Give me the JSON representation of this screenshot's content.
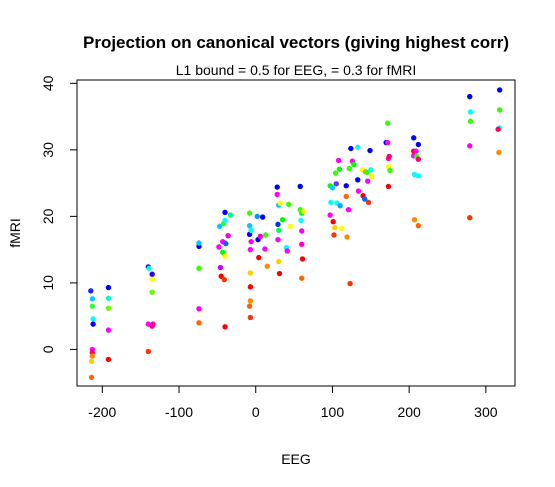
{
  "chart_data": {
    "type": "scatter",
    "title": "Projection on canonical vectors (giving highest corr)",
    "subtitle": "L1 bound = 0.5 for EEG, = 0.3 for fMRI",
    "xlabel": "EEG",
    "ylabel": "fMRI",
    "xlim": [
      -233,
      338
    ],
    "ylim": [
      -5.5,
      40.5
    ],
    "xticks": [
      -200,
      -100,
      0,
      100,
      200,
      300
    ],
    "xtick_labels": [
      "-200",
      "-100",
      "0",
      "100",
      "200",
      "300"
    ],
    "yticks": [
      0,
      10,
      20,
      30,
      40
    ],
    "ytick_labels": [
      "0",
      "10",
      "20",
      "30",
      "40"
    ],
    "grid": false,
    "legend": "none",
    "series_colors": [
      "#ff0000",
      "#ff8c00",
      "#ffff00",
      "#00ff00",
      "#00ffff",
      "#0000ff",
      "#ff00ff"
    ],
    "points": [
      {
        "x": -215,
        "y": 8.8,
        "c": "#2222ff"
      },
      {
        "x": -213,
        "y": 7.6,
        "c": "#00ccff"
      },
      {
        "x": -212,
        "y": 4.6,
        "c": "#00ffff"
      },
      {
        "x": -212,
        "y": 3.8,
        "c": "#0000ff"
      },
      {
        "x": -213,
        "y": 6.5,
        "c": "#33ff33"
      },
      {
        "x": -213,
        "y": 0.0,
        "c": "#ff00ff"
      },
      {
        "x": -213,
        "y": -0.5,
        "c": "#ff0066"
      },
      {
        "x": -213,
        "y": -1.0,
        "c": "#ff8c00"
      },
      {
        "x": -214,
        "y": -1.8,
        "c": "#ffcc00"
      },
      {
        "x": -214,
        "y": -4.2,
        "c": "#ff6600"
      },
      {
        "x": -192,
        "y": 9.3,
        "c": "#0000ff"
      },
      {
        "x": -192,
        "y": 7.7,
        "c": "#00ffcc"
      },
      {
        "x": -192,
        "y": 6.2,
        "c": "#66ff00"
      },
      {
        "x": -192,
        "y": 2.9,
        "c": "#ff00ff"
      },
      {
        "x": -192,
        "y": -1.5,
        "c": "#ff0000"
      },
      {
        "x": -140,
        "y": 12.4,
        "c": "#0000ff"
      },
      {
        "x": -139,
        "y": 12.2,
        "c": "#00ffcc"
      },
      {
        "x": -140,
        "y": 3.8,
        "c": "#ff00ff"
      },
      {
        "x": -140,
        "y": -0.3,
        "c": "#ff3300"
      },
      {
        "x": -135,
        "y": 11.3,
        "c": "#2200ff"
      },
      {
        "x": -135,
        "y": 10.5,
        "c": "#ffff00"
      },
      {
        "x": -135,
        "y": 8.6,
        "c": "#66ff00"
      },
      {
        "x": -135,
        "y": 3.5,
        "c": "#ff0066"
      },
      {
        "x": -134,
        "y": 3.8,
        "c": "#ff00aa"
      },
      {
        "x": -74,
        "y": 15.5,
        "c": "#0000ff"
      },
      {
        "x": -74,
        "y": 16.0,
        "c": "#00ccff"
      },
      {
        "x": -74,
        "y": 12.2,
        "c": "#33ff00"
      },
      {
        "x": -74,
        "y": 6.1,
        "c": "#ff00ff"
      },
      {
        "x": -74,
        "y": 4.0,
        "c": "#ff6600"
      },
      {
        "x": -48,
        "y": 15.4,
        "c": "#ff00ff"
      },
      {
        "x": -47,
        "y": 18.5,
        "c": "#00ccff"
      },
      {
        "x": -46,
        "y": 12.3,
        "c": "#cc00ff"
      },
      {
        "x": -45,
        "y": 11.0,
        "c": "#ff0000"
      },
      {
        "x": -43,
        "y": 14.6,
        "c": "#00ff00"
      },
      {
        "x": -43,
        "y": 16.2,
        "c": "#ff00ff"
      },
      {
        "x": -42,
        "y": 18.9,
        "c": "#33ff00"
      },
      {
        "x": -41,
        "y": 10.5,
        "c": "#ff3300"
      },
      {
        "x": -40,
        "y": 20.6,
        "c": "#0000ff"
      },
      {
        "x": -40,
        "y": 19.4,
        "c": "#00ffff"
      },
      {
        "x": -40,
        "y": 14.0,
        "c": "#ffff00"
      },
      {
        "x": -40,
        "y": 3.4,
        "c": "#ff0000"
      },
      {
        "x": -39,
        "y": 15.9,
        "c": "#0066ff"
      },
      {
        "x": -36,
        "y": 17.1,
        "c": "#ff00cc"
      },
      {
        "x": -33,
        "y": 20.2,
        "c": "#00ff66"
      },
      {
        "x": -8,
        "y": 20.5,
        "c": "#33ff00"
      },
      {
        "x": -8,
        "y": 18.6,
        "c": "#00ccff"
      },
      {
        "x": -8,
        "y": 17.3,
        "c": "#0000ff"
      },
      {
        "x": -7,
        "y": 15.0,
        "c": "#ff00ff"
      },
      {
        "x": -7,
        "y": 11.5,
        "c": "#ffcc00"
      },
      {
        "x": -7,
        "y": 9.4,
        "c": "#ff0000"
      },
      {
        "x": -7,
        "y": 7.3,
        "c": "#ff8c00"
      },
      {
        "x": -8,
        "y": 6.5,
        "c": "#ff6600"
      },
      {
        "x": -7,
        "y": 4.8,
        "c": "#ff3300"
      },
      {
        "x": -6,
        "y": 17.9,
        "c": "#00ffff"
      },
      {
        "x": -6,
        "y": 16.2,
        "c": "#ff00ff"
      },
      {
        "x": 2,
        "y": 20.0,
        "c": "#0099ff"
      },
      {
        "x": 3,
        "y": 16.5,
        "c": "#0000ff"
      },
      {
        "x": 4,
        "y": 13.8,
        "c": "#ff0000"
      },
      {
        "x": 6,
        "y": 17.0,
        "c": "#ff00cc"
      },
      {
        "x": 9,
        "y": 19.9,
        "c": "#0000ff"
      },
      {
        "x": 12,
        "y": 15.1,
        "c": "#ff00ff"
      },
      {
        "x": 13,
        "y": 17.2,
        "c": "#33ff00"
      },
      {
        "x": 15,
        "y": 12.5,
        "c": "#ff8c00"
      },
      {
        "x": 28,
        "y": 24.4,
        "c": "#0000ff"
      },
      {
        "x": 28,
        "y": 23.3,
        "c": "#ff00ff"
      },
      {
        "x": 29,
        "y": 18.8,
        "c": "#0033ff"
      },
      {
        "x": 29,
        "y": 16.5,
        "c": "#ff00ff"
      },
      {
        "x": 30,
        "y": 21.7,
        "c": "#00ccff"
      },
      {
        "x": 30,
        "y": 17.9,
        "c": "#00ff66"
      },
      {
        "x": 30,
        "y": 13.2,
        "c": "#ffcc00"
      },
      {
        "x": 31,
        "y": 11.4,
        "c": "#ff0000"
      },
      {
        "x": 32,
        "y": 22.0,
        "c": "#ffff00"
      },
      {
        "x": 35,
        "y": 19.5,
        "c": "#00ff00"
      },
      {
        "x": 40,
        "y": 15.3,
        "c": "#00ffff"
      },
      {
        "x": 41,
        "y": 14.8,
        "c": "#ff00ff"
      },
      {
        "x": 43,
        "y": 21.8,
        "c": "#33ff00"
      },
      {
        "x": 45,
        "y": 18.5,
        "c": "#ffff00"
      },
      {
        "x": 58,
        "y": 24.5,
        "c": "#0000ff"
      },
      {
        "x": 58,
        "y": 21.0,
        "c": "#33ff00"
      },
      {
        "x": 59,
        "y": 19.4,
        "c": "#00ffff"
      },
      {
        "x": 60,
        "y": 20.5,
        "c": "#00ff00"
      },
      {
        "x": 60,
        "y": 17.8,
        "c": "#ff00ff"
      },
      {
        "x": 60,
        "y": 15.8,
        "c": "#ff00cc"
      },
      {
        "x": 61,
        "y": 13.6,
        "c": "#ff0000"
      },
      {
        "x": 60,
        "y": 10.7,
        "c": "#ff6600"
      },
      {
        "x": 62,
        "y": 20.8,
        "c": "#ffff00"
      },
      {
        "x": 97,
        "y": 24.6,
        "c": "#00ff00"
      },
      {
        "x": 98,
        "y": 22.1,
        "c": "#00ffff"
      },
      {
        "x": 97,
        "y": 20.2,
        "c": "#ff00ff"
      },
      {
        "x": 100,
        "y": 24.3,
        "c": "#00ccff"
      },
      {
        "x": 101,
        "y": 19.2,
        "c": "#ff0000"
      },
      {
        "x": 102,
        "y": 17.2,
        "c": "#ff3300"
      },
      {
        "x": 103,
        "y": 18.3,
        "c": "#ffcc00"
      },
      {
        "x": 104,
        "y": 26.5,
        "c": "#33ff00"
      },
      {
        "x": 105,
        "y": 24.9,
        "c": "#6633ff"
      },
      {
        "x": 106,
        "y": 22.0,
        "c": "#00ffff"
      },
      {
        "x": 108,
        "y": 28.4,
        "c": "#ff00ff"
      },
      {
        "x": 109,
        "y": 27.1,
        "c": "#00ff00"
      },
      {
        "x": 110,
        "y": 21.6,
        "c": "#00aaff"
      },
      {
        "x": 112,
        "y": 18.2,
        "c": "#ffff00"
      },
      {
        "x": 118,
        "y": 24.6,
        "c": "#0000ff"
      },
      {
        "x": 118,
        "y": 23.0,
        "c": "#ff6600"
      },
      {
        "x": 119,
        "y": 16.9,
        "c": "#ff8c00"
      },
      {
        "x": 121,
        "y": 21.0,
        "c": "#ff00ff"
      },
      {
        "x": 122,
        "y": 27.2,
        "c": "#33ff00"
      },
      {
        "x": 123,
        "y": 9.9,
        "c": "#ff3300"
      },
      {
        "x": 124,
        "y": 30.2,
        "c": "#0000ff"
      },
      {
        "x": 126,
        "y": 28.3,
        "c": "#ff00ff"
      },
      {
        "x": 128,
        "y": 27.8,
        "c": "#00ff00"
      },
      {
        "x": 133,
        "y": 30.4,
        "c": "#00ffff"
      },
      {
        "x": 133,
        "y": 25.5,
        "c": "#0000ff"
      },
      {
        "x": 134,
        "y": 23.8,
        "c": "#ff00ff"
      },
      {
        "x": 139,
        "y": 27.0,
        "c": "#ffff00"
      },
      {
        "x": 140,
        "y": 23.1,
        "c": "#ff0000"
      },
      {
        "x": 142,
        "y": 22.6,
        "c": "#0066ff"
      },
      {
        "x": 143,
        "y": 26.7,
        "c": "#ff8c00"
      },
      {
        "x": 145,
        "y": 26.6,
        "c": "#33ff00"
      },
      {
        "x": 146,
        "y": 25.3,
        "c": "#ff00ff"
      },
      {
        "x": 147,
        "y": 22.1,
        "c": "#ff3300"
      },
      {
        "x": 149,
        "y": 29.9,
        "c": "#0000ff"
      },
      {
        "x": 150,
        "y": 27.0,
        "c": "#00ffff"
      },
      {
        "x": 151,
        "y": 26.0,
        "c": "#ffff00"
      },
      {
        "x": 170,
        "y": 31.1,
        "c": "#0000ff"
      },
      {
        "x": 172,
        "y": 34.0,
        "c": "#33ff00"
      },
      {
        "x": 172,
        "y": 31.1,
        "c": "#ff00ff"
      },
      {
        "x": 173,
        "y": 28.7,
        "c": "#ff00cc"
      },
      {
        "x": 173,
        "y": 27.5,
        "c": "#ffff00"
      },
      {
        "x": 173,
        "y": 24.5,
        "c": "#ff0000"
      },
      {
        "x": 174,
        "y": 29.0,
        "c": "#ff0066"
      },
      {
        "x": 175,
        "y": 26.9,
        "c": "#33ff00"
      },
      {
        "x": 206,
        "y": 31.8,
        "c": "#0000ff"
      },
      {
        "x": 206,
        "y": 29.8,
        "c": "#ff0000"
      },
      {
        "x": 206,
        "y": 29.1,
        "c": "#ff00ff"
      },
      {
        "x": 207,
        "y": 26.3,
        "c": "#00ffff"
      },
      {
        "x": 207,
        "y": 19.5,
        "c": "#ff8c00"
      },
      {
        "x": 209,
        "y": 29.8,
        "c": "#ff00ff"
      },
      {
        "x": 210,
        "y": 29.0,
        "c": "#33ff00"
      },
      {
        "x": 212,
        "y": 30.8,
        "c": "#0000ff"
      },
      {
        "x": 212,
        "y": 28.6,
        "c": "#ff0066"
      },
      {
        "x": 212,
        "y": 26.1,
        "c": "#00ffff"
      },
      {
        "x": 212,
        "y": 18.6,
        "c": "#ff6600"
      },
      {
        "x": 279,
        "y": 38.0,
        "c": "#0000ff"
      },
      {
        "x": 280,
        "y": 35.7,
        "c": "#00ffff"
      },
      {
        "x": 280,
        "y": 34.3,
        "c": "#33ff00"
      },
      {
        "x": 279,
        "y": 30.6,
        "c": "#ff00ff"
      },
      {
        "x": 279,
        "y": 19.8,
        "c": "#ff3300"
      },
      {
        "x": 318,
        "y": 39.0,
        "c": "#0000ff"
      },
      {
        "x": 318,
        "y": 36.0,
        "c": "#33ff00"
      },
      {
        "x": 318,
        "y": 33.3,
        "c": "#00ffff"
      },
      {
        "x": 316,
        "y": 33.1,
        "c": "#ff0066"
      },
      {
        "x": 317,
        "y": 29.6,
        "c": "#ff8c00"
      }
    ]
  }
}
